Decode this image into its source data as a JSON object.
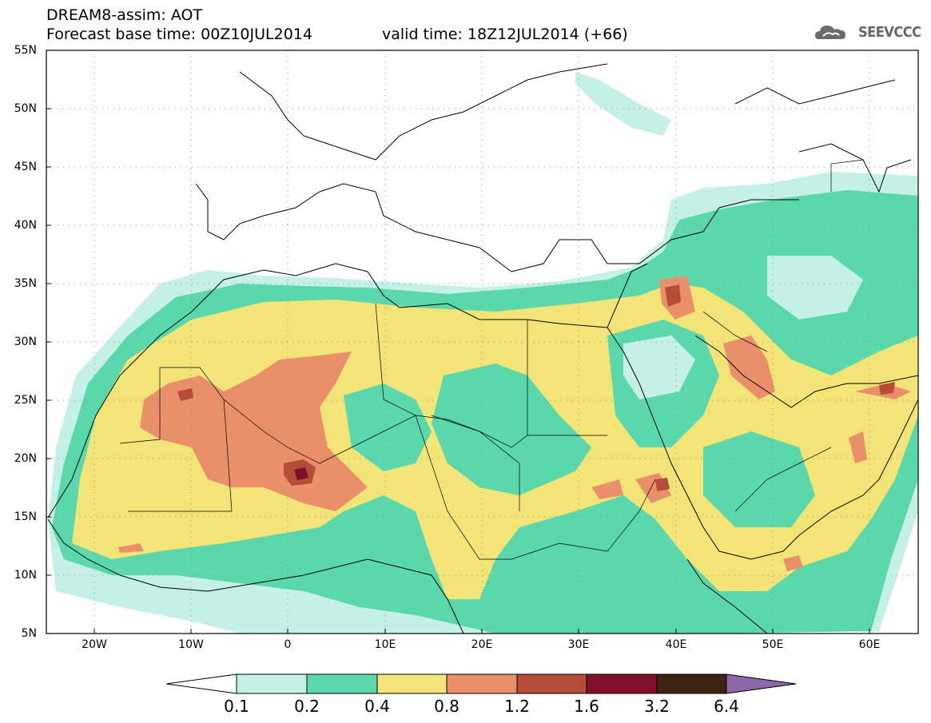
{
  "header": {
    "title_line1": "DREAM8-assim: AOT",
    "title_line2": "Forecast base time: 00Z10JUL2014",
    "valid_time": "valid time: 18Z12JUL2014 (+66)",
    "logo_text": "SEEVCCC"
  },
  "map": {
    "lat_labels": [
      "55N",
      "50N",
      "45N",
      "40N",
      "35N",
      "30N",
      "25N",
      "20N",
      "15N",
      "10N",
      "5N"
    ],
    "lon_labels": [
      "20W",
      "10W",
      "0",
      "10E",
      "20E",
      "30E",
      "40E",
      "50E",
      "60E"
    ],
    "lat_range": [
      5,
      55
    ],
    "lon_range": [
      -25,
      65
    ]
  },
  "colorbar": {
    "levels": [
      "0.1",
      "0.2",
      "0.4",
      "0.8",
      "1.2",
      "1.6",
      "3.2",
      "6.4"
    ],
    "colors": [
      "#c4f0e8",
      "#5ad8ac",
      "#f3e478",
      "#e9906a",
      "#b44c38",
      "#82102a",
      "#3d2416",
      "#8c68a8"
    ]
  }
}
